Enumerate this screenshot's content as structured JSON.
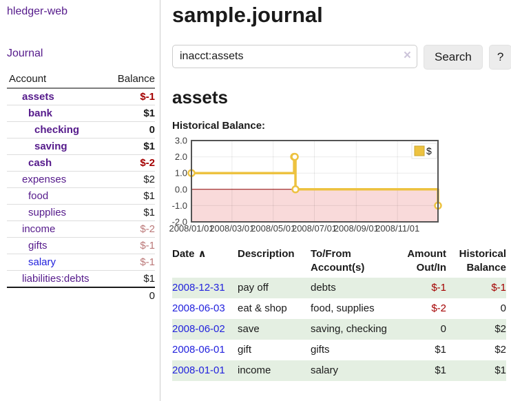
{
  "app": {
    "title": "hledger-web"
  },
  "sidebar": {
    "nav": {
      "journal_label": "Journal"
    },
    "accounts_table": {
      "headers": {
        "account": "Account",
        "balance": "Balance"
      },
      "rows": [
        {
          "name": "assets",
          "balance": "$-1",
          "depth": 1,
          "bold": true,
          "negative": "strong"
        },
        {
          "name": "bank",
          "balance": "$1",
          "depth": 2,
          "bold": true,
          "negative": null
        },
        {
          "name": "checking",
          "balance": "0",
          "depth": 3,
          "bold": true,
          "negative": null
        },
        {
          "name": "saving",
          "balance": "$1",
          "depth": 3,
          "bold": true,
          "negative": null
        },
        {
          "name": "cash",
          "balance": "$-2",
          "depth": 2,
          "bold": true,
          "negative": "strong"
        },
        {
          "name": "expenses",
          "balance": "$2",
          "depth": 1,
          "bold": false,
          "negative": null
        },
        {
          "name": "food",
          "balance": "$1",
          "depth": 2,
          "bold": false,
          "negative": null
        },
        {
          "name": "supplies",
          "balance": "$1",
          "depth": 2,
          "bold": false,
          "negative": null
        },
        {
          "name": "income",
          "balance": "$-2",
          "depth": 1,
          "bold": false,
          "negative": "muted"
        },
        {
          "name": "gifts",
          "balance": "$-1",
          "depth": 2,
          "bold": false,
          "negative": "muted"
        },
        {
          "name": "salary",
          "balance": "$-1",
          "depth": 2,
          "bold": false,
          "negative": "muted",
          "link_style": "blue"
        },
        {
          "name": "liabilities:debts",
          "balance": "$1",
          "depth": 1,
          "bold": false,
          "negative": null
        }
      ],
      "total": "0"
    }
  },
  "header": {
    "title": "sample.journal"
  },
  "search": {
    "value": "inacct:assets",
    "clear_icon": "×",
    "button_label": "Search",
    "help_label": "?"
  },
  "main": {
    "account_heading": "assets",
    "chart_label": "Historical Balance:"
  },
  "chart_data": {
    "type": "line",
    "title": "Historical Balance",
    "step": true,
    "series": [
      {
        "name": "$",
        "color": "#edc240",
        "points": [
          [
            "2008-01-01",
            1
          ],
          [
            "2008-06-01",
            2
          ],
          [
            "2008-06-02",
            2
          ],
          [
            "2008-06-03",
            0
          ],
          [
            "2008-12-31",
            -1
          ]
        ]
      }
    ],
    "x_ticks": [
      "2008/01/01",
      "2008/03/01",
      "2008/05/01",
      "2008/07/01",
      "2008/09/01",
      "2008/11/01"
    ],
    "y_ticks": [
      3.0,
      2.0,
      1.0,
      0.0,
      -1.0,
      -2.0
    ],
    "ylim": [
      -2,
      3
    ],
    "xlim_days": [
      0,
      365
    ],
    "x_epoch": "2008/01/01",
    "grid": true,
    "legend": {
      "label": "$",
      "swatch_color": "#edc240",
      "position": "top-right"
    },
    "negative_fill": "#f9dada",
    "zero_line_color": "#8b0000"
  },
  "register_table": {
    "headers": {
      "date": "Date",
      "sort_icon": "∧",
      "description": "Description",
      "accounts": "To/From Account(s)",
      "amount": "Amount Out/In",
      "balance": "Historical Balance"
    },
    "rows": [
      {
        "date": "2008-12-31",
        "description": "pay off",
        "accounts": "debts",
        "amount": "$-1",
        "amount_negative": true,
        "balance": "$-1",
        "balance_negative": true
      },
      {
        "date": "2008-06-03",
        "description": "eat & shop",
        "accounts": "food, supplies",
        "amount": "$-2",
        "amount_negative": true,
        "balance": "0",
        "balance_negative": false
      },
      {
        "date": "2008-06-02",
        "description": "save",
        "accounts": "saving, checking",
        "amount": "0",
        "amount_negative": false,
        "balance": "$2",
        "balance_negative": false
      },
      {
        "date": "2008-06-01",
        "description": "gift",
        "accounts": "gifts",
        "amount": "$1",
        "amount_negative": false,
        "balance": "$2",
        "balance_negative": false
      },
      {
        "date": "2008-01-01",
        "description": "income",
        "accounts": "salary",
        "amount": "$1",
        "amount_negative": false,
        "balance": "$1",
        "balance_negative": false
      }
    ]
  }
}
